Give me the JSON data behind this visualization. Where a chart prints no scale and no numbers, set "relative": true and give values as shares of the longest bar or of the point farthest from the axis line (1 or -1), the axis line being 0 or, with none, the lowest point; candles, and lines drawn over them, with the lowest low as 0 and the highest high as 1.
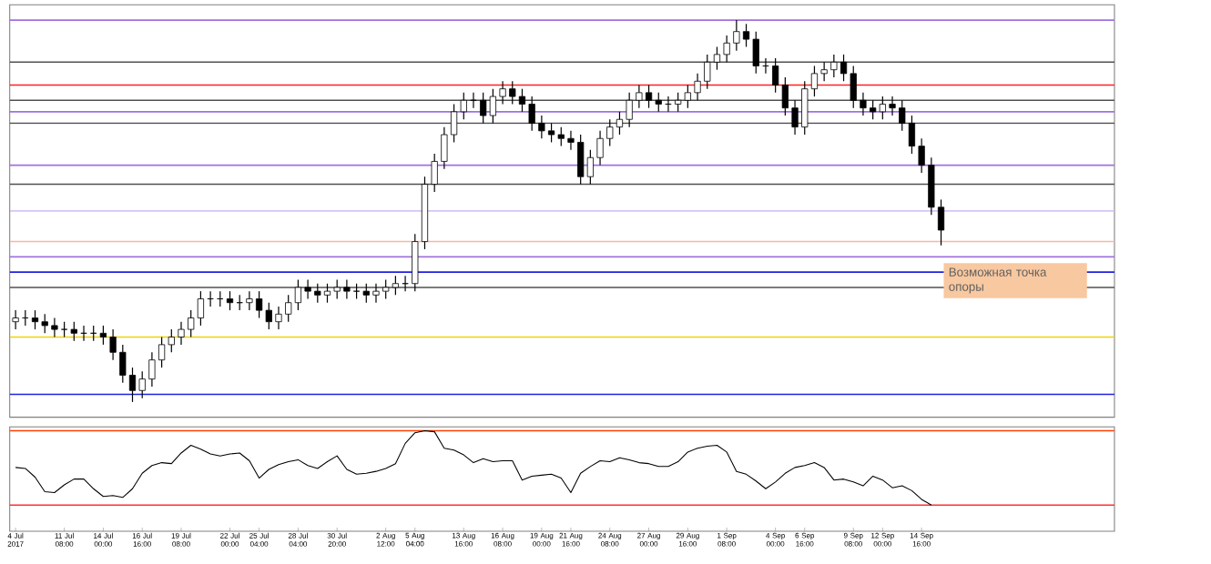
{
  "chart_data": [
    {
      "type": "candlestick",
      "relative": true,
      "color": "#000000",
      "categories": [
        null,
        null,
        null,
        null,
        null,
        null,
        null,
        null,
        null,
        null,
        null,
        null,
        null,
        null,
        null,
        null,
        null,
        null,
        null,
        null,
        null,
        null,
        null,
        null,
        null,
        null,
        null,
        null,
        null,
        null,
        null,
        null,
        null,
        null,
        null,
        null,
        null,
        null,
        null,
        null,
        null,
        null,
        null,
        null,
        null,
        null,
        null,
        null,
        null,
        null,
        null,
        null,
        null,
        null,
        null,
        null,
        null,
        null,
        null,
        null,
        null,
        null,
        null,
        null,
        null,
        null,
        null,
        null,
        null,
        null,
        null,
        null,
        null,
        null,
        null,
        null,
        null,
        null,
        null,
        null,
        null,
        null,
        null,
        null,
        null,
        null,
        null,
        null,
        null,
        null,
        null,
        null,
        null,
        null,
        null,
        null
      ],
      "ohlc": [
        [
          0.21,
          0.24,
          0.19,
          0.22
        ],
        [
          0.22,
          0.24,
          0.2,
          0.22
        ],
        [
          0.22,
          0.24,
          0.19,
          0.21
        ],
        [
          0.21,
          0.23,
          0.18,
          0.2
        ],
        [
          0.2,
          0.22,
          0.17,
          0.19
        ],
        [
          0.19,
          0.21,
          0.17,
          0.19
        ],
        [
          0.19,
          0.21,
          0.16,
          0.18
        ],
        [
          0.18,
          0.2,
          0.16,
          0.18
        ],
        [
          0.18,
          0.2,
          0.16,
          0.18
        ],
        [
          0.18,
          0.2,
          0.15,
          0.17
        ],
        [
          0.17,
          0.19,
          0.11,
          0.13
        ],
        [
          0.13,
          0.15,
          0.05,
          0.07
        ],
        [
          0.07,
          0.09,
          0.0,
          0.03
        ],
        [
          0.03,
          0.08,
          0.01,
          0.06
        ],
        [
          0.06,
          0.13,
          0.04,
          0.11
        ],
        [
          0.11,
          0.17,
          0.09,
          0.15
        ],
        [
          0.15,
          0.19,
          0.13,
          0.17
        ],
        [
          0.17,
          0.21,
          0.15,
          0.19
        ],
        [
          0.19,
          0.24,
          0.17,
          0.22
        ],
        [
          0.22,
          0.29,
          0.2,
          0.27
        ],
        [
          0.27,
          0.29,
          0.25,
          0.27
        ],
        [
          0.27,
          0.29,
          0.25,
          0.27
        ],
        [
          0.27,
          0.29,
          0.24,
          0.26
        ],
        [
          0.26,
          0.28,
          0.24,
          0.26
        ],
        [
          0.26,
          0.29,
          0.24,
          0.27
        ],
        [
          0.27,
          0.29,
          0.22,
          0.24
        ],
        [
          0.24,
          0.26,
          0.19,
          0.21
        ],
        [
          0.21,
          0.25,
          0.19,
          0.23
        ],
        [
          0.23,
          0.28,
          0.21,
          0.26
        ],
        [
          0.26,
          0.32,
          0.24,
          0.3
        ],
        [
          0.3,
          0.32,
          0.27,
          0.29
        ],
        [
          0.29,
          0.31,
          0.26,
          0.28
        ],
        [
          0.28,
          0.31,
          0.26,
          0.29
        ],
        [
          0.29,
          0.32,
          0.27,
          0.3
        ],
        [
          0.3,
          0.32,
          0.27,
          0.29
        ],
        [
          0.29,
          0.31,
          0.27,
          0.29
        ],
        [
          0.29,
          0.31,
          0.26,
          0.28
        ],
        [
          0.28,
          0.31,
          0.26,
          0.29
        ],
        [
          0.29,
          0.32,
          0.27,
          0.3
        ],
        [
          0.3,
          0.33,
          0.28,
          0.31
        ],
        [
          0.31,
          0.33,
          0.29,
          0.31
        ],
        [
          0.31,
          0.44,
          0.29,
          0.42
        ],
        [
          0.42,
          0.59,
          0.4,
          0.57
        ],
        [
          0.57,
          0.65,
          0.55,
          0.63
        ],
        [
          0.63,
          0.72,
          0.61,
          0.7
        ],
        [
          0.7,
          0.78,
          0.68,
          0.76
        ],
        [
          0.76,
          0.81,
          0.74,
          0.79
        ],
        [
          0.79,
          0.81,
          0.77,
          0.79
        ],
        [
          0.79,
          0.81,
          0.73,
          0.75
        ],
        [
          0.75,
          0.82,
          0.73,
          0.8
        ],
        [
          0.8,
          0.84,
          0.78,
          0.82
        ],
        [
          0.82,
          0.84,
          0.78,
          0.8
        ],
        [
          0.8,
          0.82,
          0.76,
          0.78
        ],
        [
          0.78,
          0.8,
          0.71,
          0.73
        ],
        [
          0.73,
          0.75,
          0.69,
          0.71
        ],
        [
          0.71,
          0.73,
          0.68,
          0.7
        ],
        [
          0.7,
          0.72,
          0.67,
          0.69
        ],
        [
          0.69,
          0.71,
          0.66,
          0.68
        ],
        [
          0.68,
          0.7,
          0.57,
          0.59
        ],
        [
          0.59,
          0.66,
          0.57,
          0.64
        ],
        [
          0.64,
          0.71,
          0.62,
          0.69
        ],
        [
          0.69,
          0.74,
          0.67,
          0.72
        ],
        [
          0.72,
          0.76,
          0.7,
          0.74
        ],
        [
          0.74,
          0.81,
          0.72,
          0.79
        ],
        [
          0.79,
          0.83,
          0.77,
          0.81
        ],
        [
          0.81,
          0.83,
          0.77,
          0.79
        ],
        [
          0.79,
          0.81,
          0.76,
          0.78
        ],
        [
          0.78,
          0.8,
          0.76,
          0.78
        ],
        [
          0.78,
          0.81,
          0.76,
          0.79
        ],
        [
          0.79,
          0.83,
          0.77,
          0.81
        ],
        [
          0.81,
          0.86,
          0.79,
          0.84
        ],
        [
          0.84,
          0.91,
          0.82,
          0.89
        ],
        [
          0.89,
          0.93,
          0.87,
          0.91
        ],
        [
          0.91,
          0.96,
          0.89,
          0.94
        ],
        [
          0.94,
          1.0,
          0.92,
          0.97
        ],
        [
          0.97,
          0.99,
          0.93,
          0.95
        ],
        [
          0.95,
          0.97,
          0.86,
          0.88
        ],
        [
          0.88,
          0.9,
          0.86,
          0.88
        ],
        [
          0.88,
          0.9,
          0.81,
          0.83
        ],
        [
          0.83,
          0.85,
          0.75,
          0.77
        ],
        [
          0.77,
          0.79,
          0.7,
          0.72
        ],
        [
          0.72,
          0.84,
          0.7,
          0.82
        ],
        [
          0.82,
          0.88,
          0.8,
          0.86
        ],
        [
          0.86,
          0.89,
          0.84,
          0.87
        ],
        [
          0.87,
          0.91,
          0.85,
          0.89
        ],
        [
          0.89,
          0.91,
          0.84,
          0.86
        ],
        [
          0.86,
          0.88,
          0.77,
          0.79
        ],
        [
          0.79,
          0.81,
          0.75,
          0.77
        ],
        [
          0.77,
          0.79,
          0.74,
          0.76
        ],
        [
          0.76,
          0.8,
          0.74,
          0.78
        ],
        [
          0.78,
          0.8,
          0.75,
          0.77
        ],
        [
          0.77,
          0.79,
          0.71,
          0.73
        ],
        [
          0.73,
          0.75,
          0.65,
          0.67
        ],
        [
          0.67,
          0.69,
          0.6,
          0.62
        ],
        [
          0.62,
          0.64,
          0.49,
          0.51
        ],
        [
          0.51,
          0.53,
          0.41,
          0.45
        ]
      ],
      "ref_lines": [
        {
          "axis": "y",
          "value": 1.0,
          "color": "#a070e0"
        },
        {
          "axis": "y",
          "value": 0.89,
          "color": "#505050"
        },
        {
          "axis": "y",
          "value": 0.83,
          "color": "#ff2020"
        },
        {
          "axis": "y",
          "value": 0.79,
          "color": "#505050"
        },
        {
          "axis": "y",
          "value": 0.76,
          "color": "#a070e0"
        },
        {
          "axis": "y",
          "value": 0.73,
          "color": "#505050"
        },
        {
          "axis": "y",
          "value": 0.62,
          "color": "#a070e0"
        },
        {
          "axis": "y",
          "value": 0.57,
          "color": "#505050"
        },
        {
          "axis": "y",
          "value": 0.5,
          "color": "#c8b0f0"
        },
        {
          "axis": "y",
          "value": 0.42,
          "color": "#f8b8a0"
        },
        {
          "axis": "y",
          "value": 0.38,
          "color": "#a070e0"
        },
        {
          "axis": "y",
          "value": 0.34,
          "color": "#2020e0"
        },
        {
          "axis": "y",
          "value": 0.3,
          "color": "#505050"
        },
        {
          "axis": "y",
          "value": 0.17,
          "color": "#f0d000"
        },
        {
          "axis": "y",
          "value": 0.02,
          "color": "#2020e0"
        }
      ],
      "annotations": [
        "Возможная точка опоры"
      ]
    },
    {
      "type": "line",
      "relative": true,
      "color": "#000000",
      "categories": [
        "4 Jul 2017",
        null,
        null,
        null,
        null,
        "11 Jul 08:00",
        null,
        null,
        null,
        "14 Jul 00:00",
        null,
        null,
        null,
        "16 Jul 16:00",
        null,
        null,
        null,
        "19 Jul 08:00",
        null,
        null,
        null,
        null,
        "22 Jul 00:00",
        null,
        null,
        "25 Jul 04:00",
        null,
        null,
        null,
        "28 Jul 04:00",
        null,
        null,
        null,
        "30 Jul 20:00",
        null,
        null,
        null,
        null,
        "2 Aug 12:00",
        null,
        null,
        "5 Aug 04:00",
        null,
        null,
        null,
        null,
        "13 Aug 16:00",
        null,
        null,
        null,
        "16 Aug 08:00",
        null,
        null,
        null,
        "19 Aug 00:00",
        null,
        null,
        "21 Aug 16:00",
        null,
        null,
        null,
        "24 Aug 08:00",
        null,
        null,
        null,
        "27 Aug 00:00",
        null,
        null,
        null,
        "29 Aug 16:00",
        null,
        null,
        null,
        "1 Sep 08:00",
        null,
        null,
        null,
        null,
        "4 Sep 00:00",
        null,
        null,
        "6 Sep 16:00",
        null,
        null,
        null,
        null,
        "9 Sep 08:00",
        null,
        null,
        "12 Sep 00:00",
        null,
        null,
        null,
        "14 Sep 16:00",
        null
      ],
      "values": [
        0.62,
        0.61,
        0.52,
        0.37,
        0.36,
        0.44,
        0.5,
        0.5,
        0.4,
        0.32,
        0.33,
        0.31,
        0.4,
        0.56,
        0.64,
        0.67,
        0.66,
        0.77,
        0.85,
        0.81,
        0.76,
        0.74,
        0.76,
        0.77,
        0.69,
        0.51,
        0.6,
        0.65,
        0.68,
        0.7,
        0.64,
        0.61,
        0.68,
        0.74,
        0.6,
        0.55,
        0.56,
        0.58,
        0.61,
        0.66,
        0.87,
        0.98,
        1.0,
        0.99,
        0.82,
        0.8,
        0.75,
        0.67,
        0.71,
        0.68,
        0.69,
        0.69,
        0.49,
        0.53,
        0.54,
        0.55,
        0.51,
        0.36,
        0.56,
        0.63,
        0.69,
        0.68,
        0.72,
        0.7,
        0.67,
        0.66,
        0.63,
        0.63,
        0.68,
        0.78,
        0.82,
        0.84,
        0.85,
        0.78,
        0.58,
        0.55,
        0.48,
        0.4,
        0.47,
        0.56,
        0.62,
        0.64,
        0.67,
        0.62,
        0.49,
        0.5,
        0.47,
        0.43,
        0.53,
        0.49,
        0.41,
        0.43,
        0.38,
        0.29,
        0.23
      ],
      "ref_lines": [
        {
          "axis": "y",
          "value": 1.0,
          "color": "#ff4000"
        },
        {
          "axis": "y",
          "value": 0.23,
          "color": "#ff3030"
        }
      ]
    }
  ]
}
